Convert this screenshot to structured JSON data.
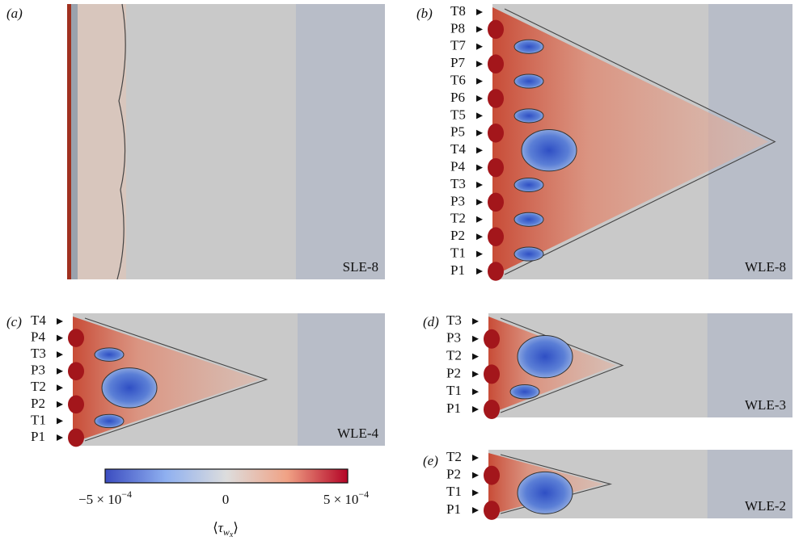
{
  "panels": [
    {
      "label": "(a)",
      "case": "SLE-8",
      "markers": []
    },
    {
      "label": "(b)",
      "case": "WLE-8",
      "markers": [
        "T8",
        "P8",
        "T7",
        "P7",
        "T6",
        "P6",
        "T5",
        "P5",
        "T4",
        "P4",
        "T3",
        "P3",
        "T2",
        "P2",
        "T1",
        "P1"
      ]
    },
    {
      "label": "(c)",
      "case": "WLE-4",
      "markers": [
        "T4",
        "P4",
        "T3",
        "P3",
        "T2",
        "P2",
        "T1",
        "P1"
      ]
    },
    {
      "label": "(d)",
      "case": "WLE-3",
      "markers": [
        "T3",
        "P3",
        "T2",
        "P2",
        "T1",
        "P1"
      ]
    },
    {
      "label": "(e)",
      "case": "WLE-2",
      "markers": [
        "T2",
        "P2",
        "T1",
        "P1"
      ]
    }
  ],
  "colorbar": {
    "ticks": [
      {
        "base": "−5 × 10",
        "exponent": "−4"
      },
      {
        "base": "0",
        "exponent": ""
      },
      {
        "base": "5 × 10",
        "exponent": "−4"
      }
    ],
    "title": {
      "open": "⟨",
      "symbol": "τ",
      "subscript": "w",
      "subsubscript": "x",
      "close": "⟩"
    }
  }
}
